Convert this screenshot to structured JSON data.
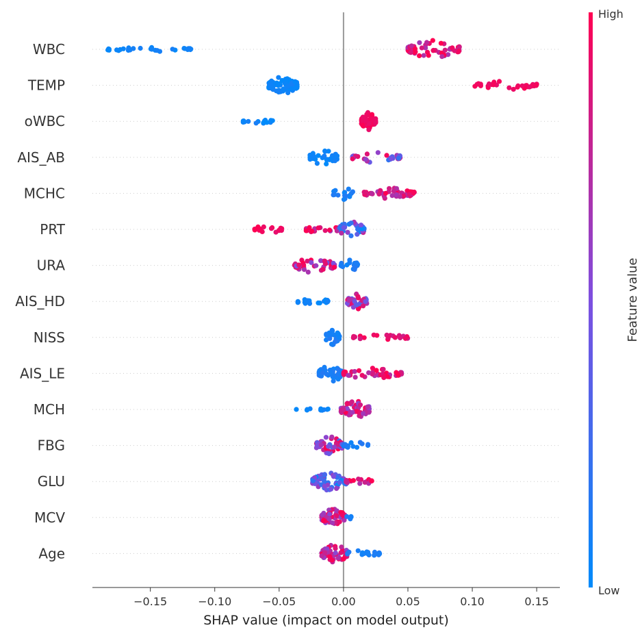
{
  "chart_data": {
    "type": "scatter",
    "subtype": "shap-beeswarm",
    "title": "",
    "xlabel": "SHAP value (impact on model output)",
    "ylabel": "",
    "xlim": [
      -0.195,
      0.168
    ],
    "xticks": [
      -0.15,
      -0.1,
      -0.05,
      0.0,
      0.05,
      0.1,
      0.15
    ],
    "xtick_labels": [
      "−0.15",
      "−0.10",
      "−0.05",
      "0.00",
      "0.05",
      "0.10",
      "0.15"
    ],
    "zero_line": true,
    "grid": false,
    "colorbar": {
      "title": "Feature value",
      "high_label": "High",
      "low_label": "Low",
      "low_color": "#008bfb",
      "mid_color": "#7d4fe0",
      "high_color": "#ff0052"
    },
    "features": [
      {
        "name": "WBC",
        "clusters": [
          {
            "min": -0.183,
            "max": -0.118,
            "n": 30,
            "fv": 0.05,
            "spread": 0.3
          },
          {
            "min": 0.05,
            "max": 0.09,
            "n": 60,
            "fv": 0.85,
            "fv_spread": 0.2,
            "spread": 1.0
          }
        ]
      },
      {
        "name": "TEMP",
        "clusters": [
          {
            "min": -0.058,
            "max": -0.036,
            "n": 80,
            "fv": 0.05,
            "spread": 1.0
          },
          {
            "min": 0.102,
            "max": 0.15,
            "n": 32,
            "fv": 0.95,
            "spread": 0.5
          }
        ]
      },
      {
        "name": "oWBC",
        "clusters": [
          {
            "min": -0.078,
            "max": -0.055,
            "n": 16,
            "fv": 0.05,
            "spread": 0.3
          },
          {
            "min": 0.014,
            "max": 0.025,
            "n": 60,
            "fv": 0.95,
            "spread": 1.0
          }
        ]
      },
      {
        "name": "AIS_AB",
        "clusters": [
          {
            "min": -0.026,
            "max": -0.005,
            "n": 40,
            "fv": 0.05,
            "spread": 0.9
          },
          {
            "min": 0.007,
            "max": 0.044,
            "n": 36,
            "fv": 0.6,
            "fv_spread": 0.4,
            "spread": 0.6
          }
        ]
      },
      {
        "name": "MCHC",
        "clusters": [
          {
            "min": -0.008,
            "max": 0.008,
            "n": 16,
            "fv": 0.1,
            "spread": 0.7
          },
          {
            "min": 0.016,
            "max": 0.055,
            "n": 50,
            "fv": 0.85,
            "fv_spread": 0.2,
            "spread": 0.6
          }
        ]
      },
      {
        "name": "PRT",
        "clusters": [
          {
            "min": -0.069,
            "max": -0.048,
            "n": 20,
            "fv": 0.95,
            "spread": 0.5
          },
          {
            "min": -0.029,
            "max": -0.004,
            "n": 26,
            "fv": 0.85,
            "fv_spread": 0.2,
            "spread": 0.5
          },
          {
            "min": -0.003,
            "max": 0.016,
            "n": 40,
            "fv": 0.4,
            "fv_spread": 0.4,
            "spread": 1.0
          }
        ]
      },
      {
        "name": "URA",
        "clusters": [
          {
            "min": -0.038,
            "max": -0.007,
            "n": 50,
            "fv": 0.75,
            "fv_spread": 0.3,
            "spread": 0.9
          },
          {
            "min": -0.002,
            "max": 0.011,
            "n": 20,
            "fv": 0.1,
            "spread": 0.7
          }
        ]
      },
      {
        "name": "AIS_HD",
        "clusters": [
          {
            "min": -0.036,
            "max": -0.012,
            "n": 18,
            "fv": 0.05,
            "spread": 0.4
          },
          {
            "min": 0.003,
            "max": 0.018,
            "n": 44,
            "fv": 0.7,
            "fv_spread": 0.35,
            "spread": 0.9
          }
        ]
      },
      {
        "name": "NISS",
        "clusters": [
          {
            "min": -0.014,
            "max": -0.003,
            "n": 30,
            "fv": 0.1,
            "spread": 0.9
          },
          {
            "min": 0.007,
            "max": 0.05,
            "n": 24,
            "fv": 0.9,
            "fv_spread": 0.1,
            "spread": 0.35
          }
        ]
      },
      {
        "name": "AIS_LE",
        "clusters": [
          {
            "min": -0.019,
            "max": -0.001,
            "n": 50,
            "fv": 0.1,
            "spread": 1.0
          },
          {
            "min": 0.0,
            "max": 0.045,
            "n": 46,
            "fv": 0.85,
            "fv_spread": 0.2,
            "spread": 0.6
          }
        ]
      },
      {
        "name": "MCH",
        "clusters": [
          {
            "min": -0.037,
            "max": -0.012,
            "n": 10,
            "fv": 0.05,
            "spread": 0.2
          },
          {
            "min": -0.002,
            "max": 0.02,
            "n": 70,
            "fv": 0.8,
            "fv_spread": 0.25,
            "spread": 1.0
          }
        ]
      },
      {
        "name": "FBG",
        "clusters": [
          {
            "min": -0.021,
            "max": -0.001,
            "n": 56,
            "fv": 0.65,
            "fv_spread": 0.4,
            "spread": 1.0
          },
          {
            "min": 0.0,
            "max": 0.019,
            "n": 14,
            "fv": 0.1,
            "spread": 0.4
          }
        ]
      },
      {
        "name": "GLU",
        "clusters": [
          {
            "min": -0.024,
            "max": 0.002,
            "n": 70,
            "fv": 0.3,
            "fv_spread": 0.35,
            "spread": 1.0
          },
          {
            "min": 0.002,
            "max": 0.022,
            "n": 26,
            "fv": 0.85,
            "fv_spread": 0.2,
            "spread": 0.45
          }
        ]
      },
      {
        "name": "MCV",
        "clusters": [
          {
            "min": -0.017,
            "max": 0.001,
            "n": 56,
            "fv": 0.8,
            "fv_spread": 0.25,
            "spread": 1.0
          },
          {
            "min": 0.001,
            "max": 0.006,
            "n": 4,
            "fv": 0.1,
            "spread": 0.3
          }
        ]
      },
      {
        "name": "Age",
        "clusters": [
          {
            "min": -0.017,
            "max": 0.003,
            "n": 56,
            "fv": 0.8,
            "fv_spread": 0.25,
            "spread": 1.0
          },
          {
            "min": 0.003,
            "max": 0.028,
            "n": 18,
            "fv": 0.1,
            "spread": 0.4
          }
        ]
      }
    ]
  }
}
